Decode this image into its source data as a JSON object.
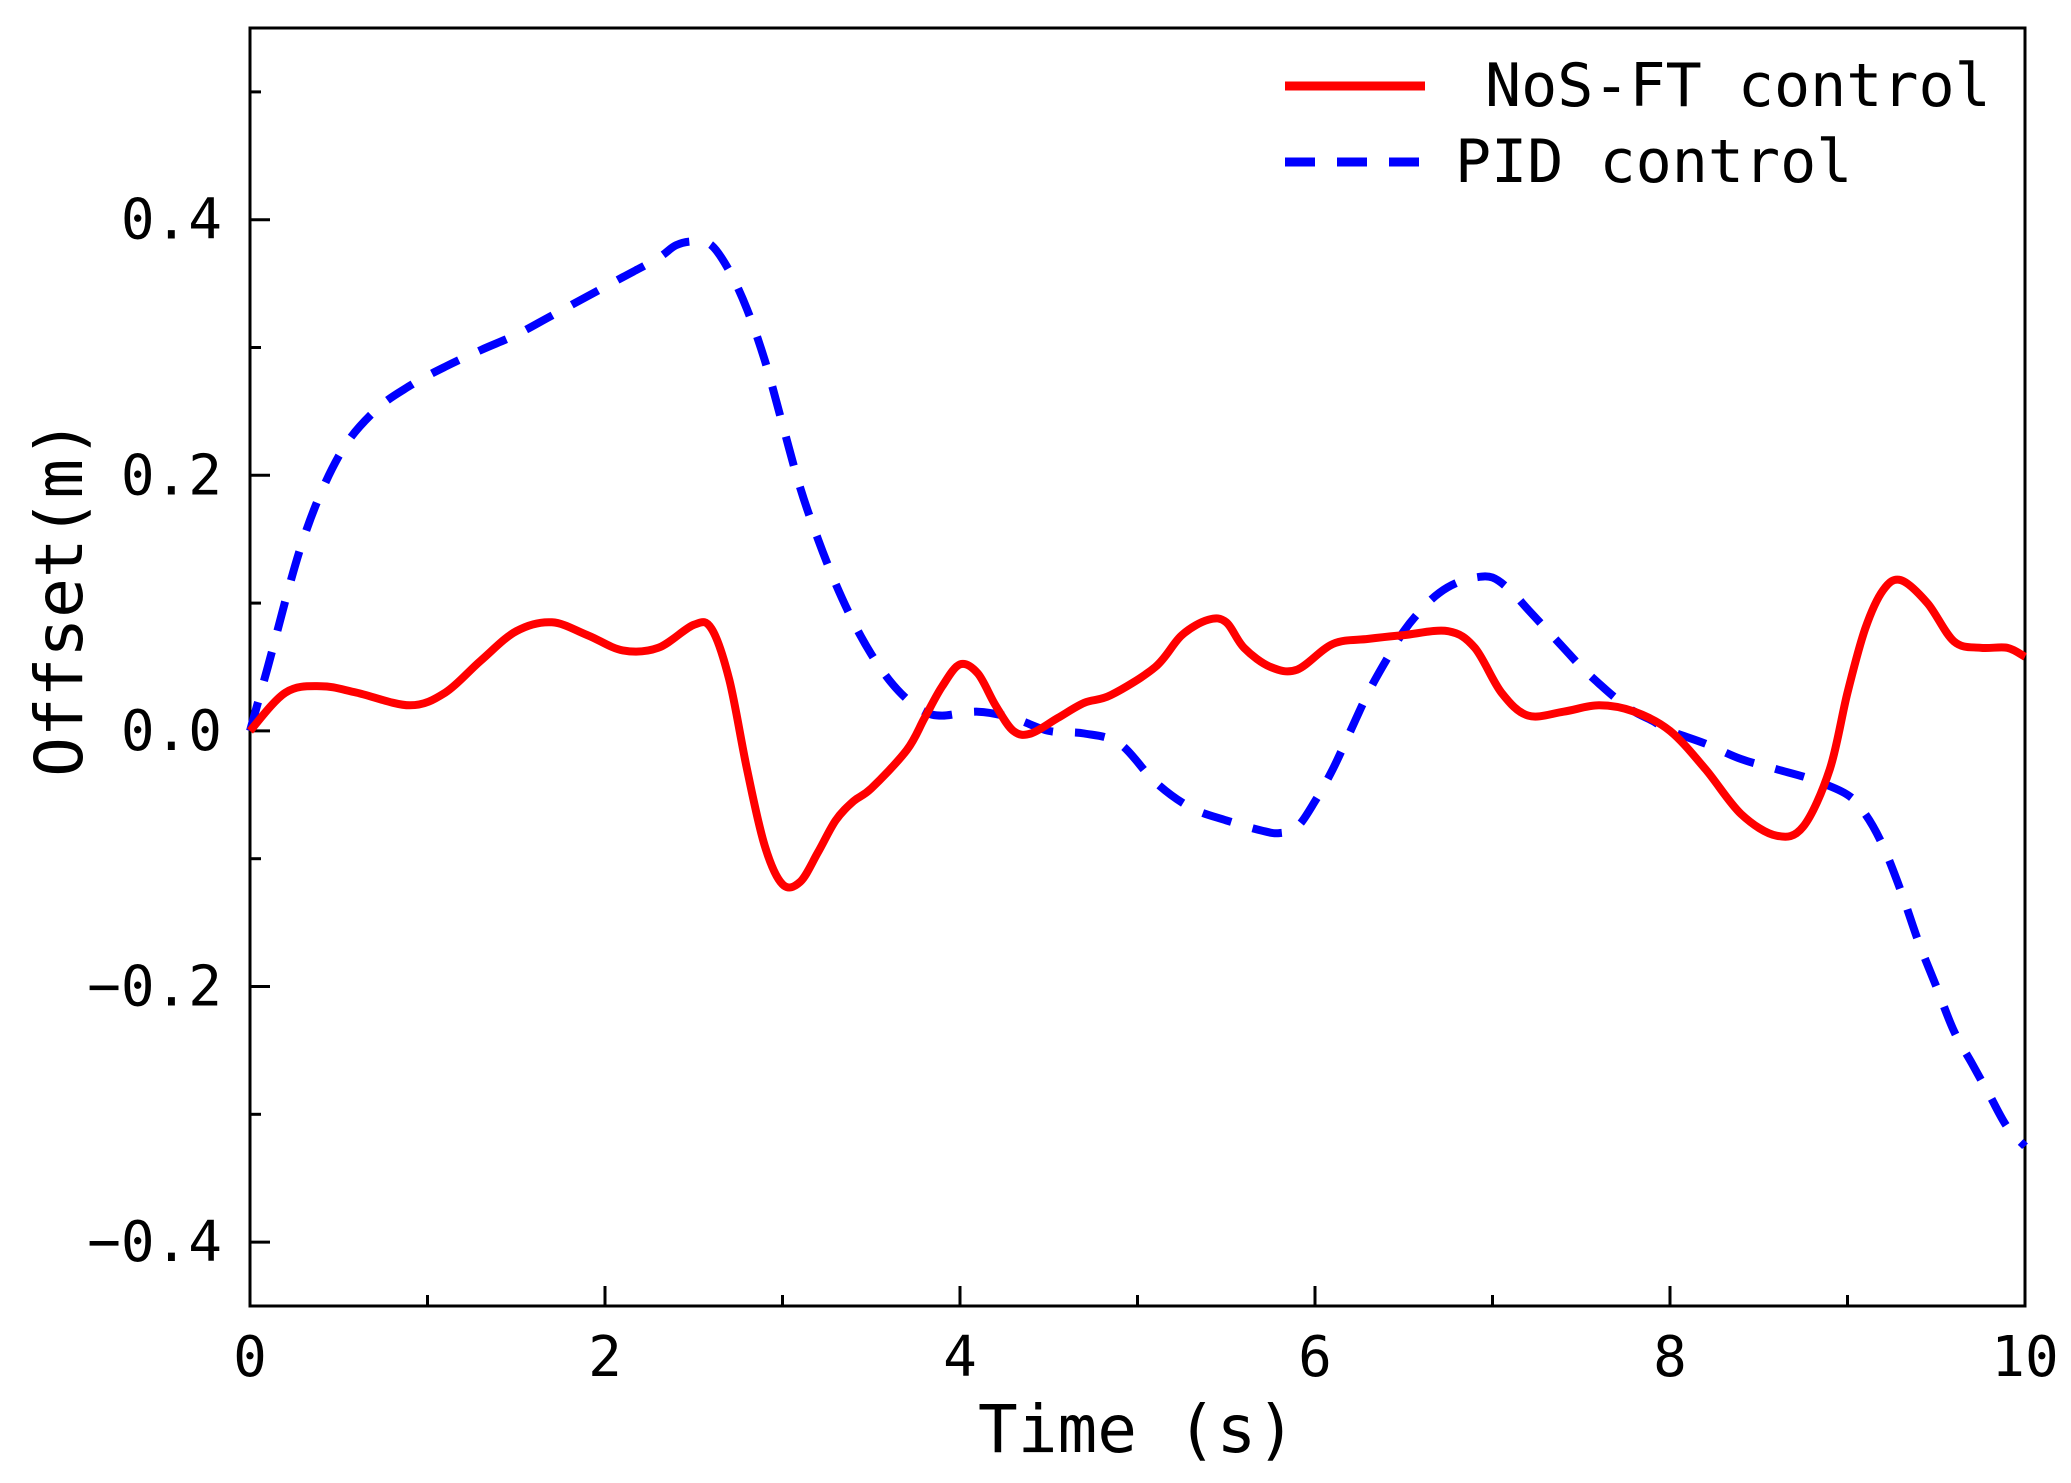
{
  "chart_data": {
    "type": "line",
    "title": "",
    "xlabel": "Time (s)",
    "ylabel": "Offset(m)",
    "xlim": [
      0,
      10
    ],
    "ylim": [
      -0.45,
      0.55
    ],
    "xticks": [
      0,
      2,
      4,
      6,
      8,
      10
    ],
    "xtick_labels": [
      "0",
      "2",
      "4",
      "6",
      "8",
      "10"
    ],
    "yticks": [
      -0.4,
      -0.2,
      0.0,
      0.2,
      0.4
    ],
    "ytick_labels": [
      "−0.4",
      "−0.2",
      "0.0",
      "0.2",
      "0.4"
    ],
    "grid": false,
    "legend_position": "top-right",
    "series": [
      {
        "name": "NoS-FT control",
        "color": "#ff0000",
        "style": "solid",
        "x": [
          0,
          0.2,
          0.4,
          0.6,
          0.9,
          1.1,
          1.3,
          1.5,
          1.7,
          1.9,
          2.1,
          2.3,
          2.5,
          2.6,
          2.7,
          2.8,
          2.9,
          3.0,
          3.1,
          3.2,
          3.3,
          3.4,
          3.5,
          3.7,
          3.8,
          3.9,
          4.0,
          4.1,
          4.2,
          4.3,
          4.4,
          4.55,
          4.7,
          4.85,
          5.1,
          5.25,
          5.4,
          5.5,
          5.6,
          5.75,
          5.9,
          6.1,
          6.3,
          6.5,
          6.75,
          6.9,
          7.05,
          7.2,
          7.4,
          7.6,
          7.8,
          8.0,
          8.2,
          8.4,
          8.6,
          8.75,
          8.9,
          9.0,
          9.1,
          9.2,
          9.3,
          9.45,
          9.6,
          9.75,
          9.9,
          10.0
        ],
        "y": [
          0.0,
          0.03,
          0.035,
          0.03,
          0.02,
          0.03,
          0.055,
          0.078,
          0.085,
          0.075,
          0.063,
          0.065,
          0.083,
          0.08,
          0.04,
          -0.03,
          -0.09,
          -0.12,
          -0.118,
          -0.095,
          -0.07,
          -0.055,
          -0.045,
          -0.015,
          0.01,
          0.035,
          0.052,
          0.045,
          0.02,
          0.0,
          -0.002,
          0.01,
          0.022,
          0.028,
          0.05,
          0.075,
          0.087,
          0.085,
          0.065,
          0.05,
          0.048,
          0.068,
          0.072,
          0.075,
          0.078,
          0.065,
          0.03,
          0.012,
          0.015,
          0.02,
          0.015,
          0.0,
          -0.03,
          -0.065,
          -0.082,
          -0.075,
          -0.03,
          0.03,
          0.08,
          0.11,
          0.118,
          0.1,
          0.07,
          0.065,
          0.065,
          0.058
        ]
      },
      {
        "name": "PID control",
        "color": "#0000ff",
        "style": "dashed",
        "x": [
          0,
          0.1,
          0.3,
          0.5,
          0.7,
          0.9,
          1.1,
          1.3,
          1.5,
          1.7,
          1.9,
          2.1,
          2.3,
          2.4,
          2.5,
          2.6,
          2.7,
          2.8,
          2.9,
          3.0,
          3.1,
          3.2,
          3.3,
          3.4,
          3.5,
          3.6,
          3.7,
          3.8,
          3.9,
          4.1,
          4.3,
          4.5,
          4.7,
          4.9,
          5.1,
          5.3,
          5.5,
          5.7,
          5.8,
          5.9,
          6.0,
          6.1,
          6.2,
          6.3,
          6.4,
          6.5,
          6.6,
          6.7,
          6.8,
          6.9,
          7.0,
          7.1,
          7.2,
          7.3,
          7.4,
          7.5,
          7.6,
          7.7,
          7.8,
          7.9,
          8.0,
          8.2,
          8.4,
          8.6,
          8.8,
          9.0,
          9.1,
          9.2,
          9.3,
          9.4,
          9.5,
          9.6,
          9.7,
          9.8,
          9.9,
          10.0
        ],
        "y": [
          0.0,
          0.05,
          0.15,
          0.215,
          0.25,
          0.27,
          0.285,
          0.298,
          0.31,
          0.325,
          0.34,
          0.355,
          0.37,
          0.38,
          0.383,
          0.38,
          0.36,
          0.33,
          0.29,
          0.24,
          0.19,
          0.15,
          0.115,
          0.085,
          0.06,
          0.04,
          0.025,
          0.015,
          0.012,
          0.015,
          0.01,
          0.0,
          -0.002,
          -0.01,
          -0.04,
          -0.06,
          -0.07,
          -0.078,
          -0.08,
          -0.075,
          -0.055,
          -0.03,
          0.0,
          0.03,
          0.055,
          0.078,
          0.095,
          0.108,
          0.116,
          0.12,
          0.12,
          0.11,
          0.095,
          0.08,
          0.065,
          0.05,
          0.037,
          0.025,
          0.015,
          0.008,
          0.0,
          -0.01,
          -0.022,
          -0.03,
          -0.038,
          -0.05,
          -0.065,
          -0.09,
          -0.125,
          -0.165,
          -0.2,
          -0.235,
          -0.26,
          -0.285,
          -0.31,
          -0.325
        ]
      }
    ]
  }
}
